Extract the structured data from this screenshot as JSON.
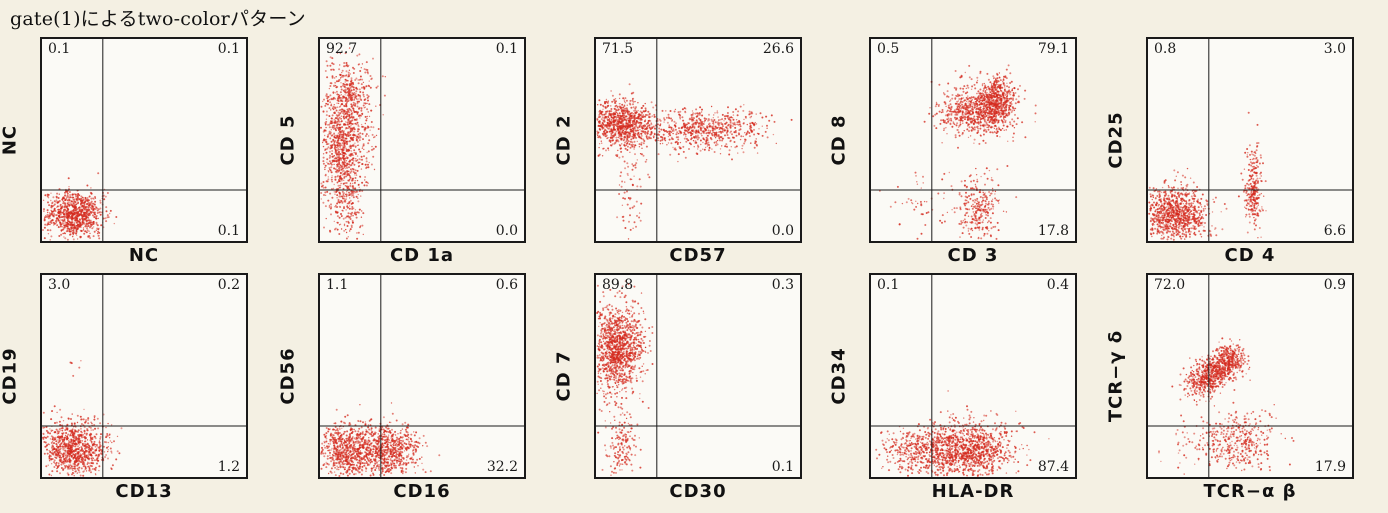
{
  "page": {
    "title": "gate(1)によるtwo-colorパターン"
  },
  "colors": {
    "dots": "#d42a1e",
    "frame": "#1a1a1a",
    "background": "#f4f0e3"
  },
  "chart_data": [
    {
      "type": "scatter",
      "xlabel": "NC",
      "ylabel": "NC",
      "quadrants": {
        "ul": "0.1",
        "ur": "0.1",
        "lr": "0.1"
      },
      "clusters": [
        {
          "x": 0.16,
          "y": 0.13,
          "sx": 0.07,
          "sy": 0.06,
          "n": 900
        }
      ]
    },
    {
      "type": "scatter",
      "xlabel": "CD 1a",
      "ylabel": "CD 5",
      "quadrants": {
        "ul": "92.7",
        "ur": "0.1",
        "lr": "0.0"
      },
      "clusters": [
        {
          "x": 0.12,
          "y": 0.47,
          "sx": 0.06,
          "sy": 0.16,
          "n": 1000
        },
        {
          "x": 0.14,
          "y": 0.72,
          "sx": 0.06,
          "sy": 0.08,
          "n": 300
        },
        {
          "x": 0.13,
          "y": 0.14,
          "sx": 0.04,
          "sy": 0.09,
          "n": 120
        }
      ]
    },
    {
      "type": "scatter",
      "xlabel": "CD57",
      "ylabel": "CD 2",
      "quadrants": {
        "ul": "71.5",
        "ur": "26.6",
        "lr": "0.0"
      },
      "clusters": [
        {
          "x": 0.12,
          "y": 0.58,
          "sx": 0.08,
          "sy": 0.06,
          "n": 900
        },
        {
          "x": 0.52,
          "y": 0.55,
          "sx": 0.17,
          "sy": 0.05,
          "n": 700
        },
        {
          "x": 0.16,
          "y": 0.22,
          "sx": 0.04,
          "sy": 0.12,
          "n": 70
        }
      ]
    },
    {
      "type": "scatter",
      "xlabel": "CD 3",
      "ylabel": "CD 8",
      "quadrants": {
        "ul": "0.5",
        "ur": "79.1",
        "lr": "17.8"
      },
      "clusters": [
        {
          "x": 0.52,
          "y": 0.64,
          "sx": 0.09,
          "sy": 0.06,
          "n": 700
        },
        {
          "x": 0.62,
          "y": 0.7,
          "sx": 0.04,
          "sy": 0.06,
          "n": 500
        },
        {
          "x": 0.53,
          "y": 0.15,
          "sx": 0.05,
          "sy": 0.09,
          "n": 280
        },
        {
          "x": 0.25,
          "y": 0.18,
          "sx": 0.12,
          "sy": 0.08,
          "n": 60
        }
      ]
    },
    {
      "type": "scatter",
      "xlabel": "CD 4",
      "ylabel": "CD25",
      "quadrants": {
        "ul": "0.8",
        "ur": "3.0",
        "lr": "6.6"
      },
      "clusters": [
        {
          "x": 0.13,
          "y": 0.13,
          "sx": 0.08,
          "sy": 0.07,
          "n": 1000
        },
        {
          "x": 0.52,
          "y": 0.22,
          "sx": 0.02,
          "sy": 0.08,
          "n": 220
        },
        {
          "x": 0.52,
          "y": 0.4,
          "sx": 0.02,
          "sy": 0.08,
          "n": 50
        }
      ]
    },
    {
      "type": "scatter",
      "xlabel": "CD13",
      "ylabel": "CD19",
      "quadrants": {
        "ul": "3.0",
        "ur": "0.2",
        "lr": "1.2"
      },
      "clusters": [
        {
          "x": 0.15,
          "y": 0.14,
          "sx": 0.08,
          "sy": 0.07,
          "n": 1000
        },
        {
          "x": 0.17,
          "y": 0.55,
          "sx": 0.02,
          "sy": 0.03,
          "n": 6
        }
      ]
    },
    {
      "type": "scatter",
      "xlabel": "CD16",
      "ylabel": "CD56",
      "quadrants": {
        "ul": "1.1",
        "ur": "0.6",
        "lr": "32.2"
      },
      "clusters": [
        {
          "x": 0.14,
          "y": 0.13,
          "sx": 0.08,
          "sy": 0.07,
          "n": 800
        },
        {
          "x": 0.35,
          "y": 0.13,
          "sx": 0.07,
          "sy": 0.07,
          "n": 600
        }
      ]
    },
    {
      "type": "scatter",
      "xlabel": "CD30",
      "ylabel": "CD 7",
      "quadrants": {
        "ul": "89.8",
        "ur": "0.3",
        "lr": "0.1"
      },
      "clusters": [
        {
          "x": 0.11,
          "y": 0.64,
          "sx": 0.06,
          "sy": 0.11,
          "n": 1200
        },
        {
          "x": 0.13,
          "y": 0.14,
          "sx": 0.04,
          "sy": 0.1,
          "n": 180
        }
      ]
    },
    {
      "type": "scatter",
      "xlabel": "HLA-DR",
      "ylabel": "CD34",
      "quadrants": {
        "ul": "0.1",
        "ur": "0.4",
        "lr": "87.4"
      },
      "clusters": [
        {
          "x": 0.46,
          "y": 0.13,
          "sx": 0.12,
          "sy": 0.07,
          "n": 1200
        },
        {
          "x": 0.22,
          "y": 0.13,
          "sx": 0.09,
          "sy": 0.06,
          "n": 300
        }
      ]
    },
    {
      "type": "scatter",
      "xlabel": "TCR−α β",
      "ylabel": "TCR−γ δ",
      "quadrants": {
        "ul": "72.0",
        "ur": "0.9",
        "lr": "17.9"
      },
      "clusters": [
        {
          "x": 0.26,
          "y": 0.47,
          "sx": 0.04,
          "sy": 0.04,
          "n": 250
        },
        {
          "x": 0.33,
          "y": 0.52,
          "sx": 0.04,
          "sy": 0.04,
          "n": 300
        },
        {
          "x": 0.4,
          "y": 0.58,
          "sx": 0.04,
          "sy": 0.04,
          "n": 300
        },
        {
          "x": 0.45,
          "y": 0.18,
          "sx": 0.09,
          "sy": 0.08,
          "n": 350
        },
        {
          "x": 0.25,
          "y": 0.16,
          "sx": 0.08,
          "sy": 0.06,
          "n": 60
        }
      ]
    }
  ]
}
